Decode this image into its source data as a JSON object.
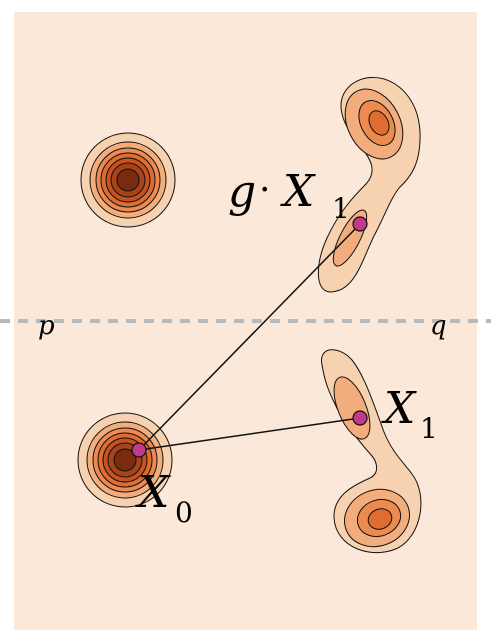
{
  "colors": {
    "panel": "#fbe8d8",
    "dashed": "#b9b9b9",
    "stroke": "#111111",
    "point": "#c23a8c",
    "level1": "#f7d2b0",
    "level2": "#f3ad7d",
    "level3": "#ec8a50",
    "level4": "#df6d30",
    "level5": "#c8521f",
    "level6": "#a9431a",
    "level7": "#7a2c10"
  },
  "labels": {
    "p": "p",
    "q": "q",
    "x1_top_g": "g",
    "x1_top_dot": "·",
    "x1_top_X": "X",
    "x1_top_sub": "1",
    "x1_X": "X",
    "x1_sub": "1",
    "x0_X": "X",
    "x0_sub": "0"
  }
}
